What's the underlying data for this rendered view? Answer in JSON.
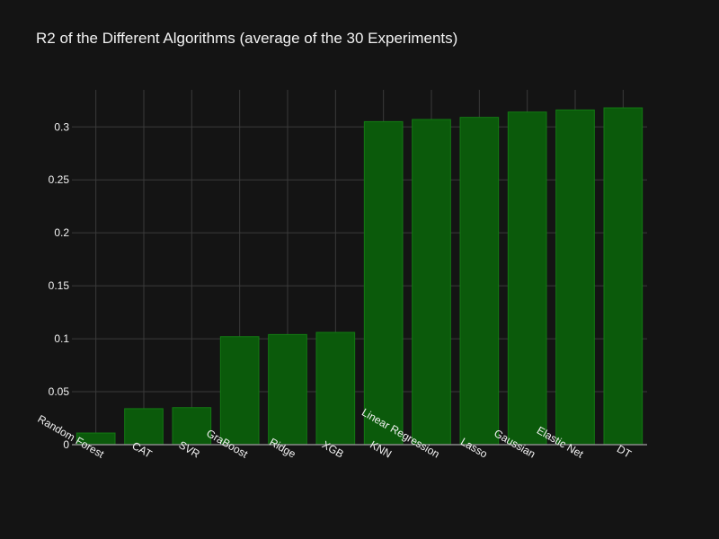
{
  "chart_data": {
    "type": "bar",
    "title": "R2 of the Different Algorithms (average of the 30 Experiments)",
    "xlabel": "",
    "ylabel": "",
    "categories": [
      "Random Forest",
      "CAT",
      "SVR",
      "GraBoost",
      "Ridge",
      "XGB",
      "KNN",
      "Linear Regression",
      "Lasso",
      "Gaussian",
      "Elastic Net",
      "DT"
    ],
    "values": [
      0.011,
      0.034,
      0.035,
      0.102,
      0.104,
      0.106,
      0.305,
      0.307,
      0.309,
      0.314,
      0.316,
      0.318
    ],
    "ylim": [
      0,
      0.335
    ],
    "yticks": [
      0,
      0.05,
      0.1,
      0.15,
      0.2,
      0.25,
      0.3
    ],
    "ytick_labels": [
      "0",
      "0.05",
      "0.1",
      "0.15",
      "0.2",
      "0.25",
      "0.3"
    ],
    "grid": true,
    "legend": "none",
    "colors": {
      "background": "#141414",
      "bar_fill": "#0b5a0b",
      "bar_stroke": "#137a13",
      "grid": "#3a3a3a",
      "axis": "#8a8a8a",
      "text": "#f2f2f2"
    }
  }
}
